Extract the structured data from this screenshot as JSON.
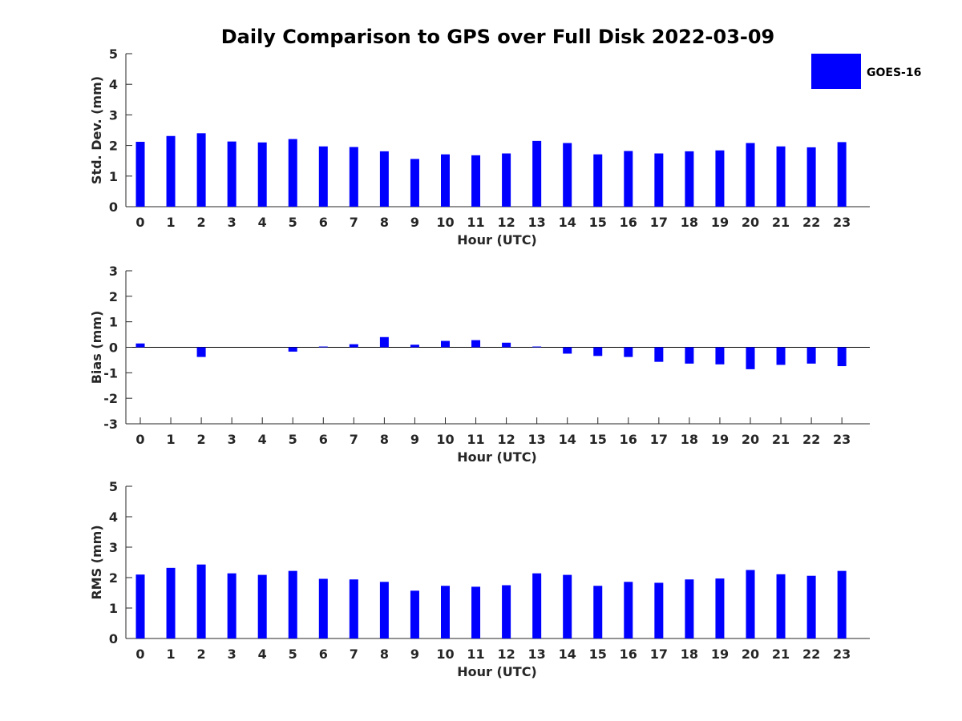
{
  "chart_data": {
    "type": "bar",
    "title": "Daily Comparison to GPS over Full Disk 2022-03-09",
    "legend": {
      "label": "GOES-16",
      "color": "#0000ff",
      "placement": "top-right"
    },
    "categories": [
      "0",
      "1",
      "2",
      "3",
      "4",
      "5",
      "6",
      "7",
      "8",
      "9",
      "10",
      "11",
      "12",
      "13",
      "14",
      "15",
      "16",
      "17",
      "18",
      "19",
      "20",
      "21",
      "22",
      "23"
    ],
    "panels": [
      {
        "id": "std",
        "ylabel": "Std. Dev. (mm)",
        "xlabel": "Hour (UTC)",
        "ylim": [
          0,
          5
        ],
        "yticks": [
          "0",
          "1",
          "2",
          "3",
          "4",
          "5"
        ],
        "values": [
          2.12,
          2.31,
          2.4,
          2.13,
          2.1,
          2.21,
          1.97,
          1.95,
          1.81,
          1.56,
          1.71,
          1.68,
          1.74,
          2.15,
          2.08,
          1.71,
          1.82,
          1.74,
          1.81,
          1.84,
          2.08,
          1.97,
          1.94,
          2.11
        ]
      },
      {
        "id": "bias",
        "ylabel": "Bias (mm)",
        "xlabel": "Hour (UTC)",
        "ylim": [
          -3,
          3
        ],
        "yticks": [
          "-3",
          "-2",
          "-1",
          "0",
          "1",
          "2",
          "3"
        ],
        "values": [
          0.15,
          0.0,
          -0.38,
          0.0,
          0.0,
          -0.17,
          0.03,
          0.12,
          0.4,
          0.1,
          0.25,
          0.28,
          0.18,
          0.03,
          -0.25,
          -0.34,
          -0.38,
          -0.57,
          -0.64,
          -0.67,
          -0.86,
          -0.69,
          -0.64,
          -0.74
        ]
      },
      {
        "id": "rms",
        "ylabel": "RMS (mm)",
        "xlabel": "Hour (UTC)",
        "ylim": [
          0,
          5
        ],
        "yticks": [
          "0",
          "1",
          "2",
          "3",
          "4",
          "5"
        ],
        "values": [
          2.1,
          2.32,
          2.43,
          2.14,
          2.09,
          2.22,
          1.96,
          1.94,
          1.86,
          1.57,
          1.73,
          1.7,
          1.75,
          2.14,
          2.09,
          1.73,
          1.86,
          1.83,
          1.94,
          1.97,
          2.25,
          2.11,
          2.06,
          2.22
        ]
      }
    ]
  }
}
